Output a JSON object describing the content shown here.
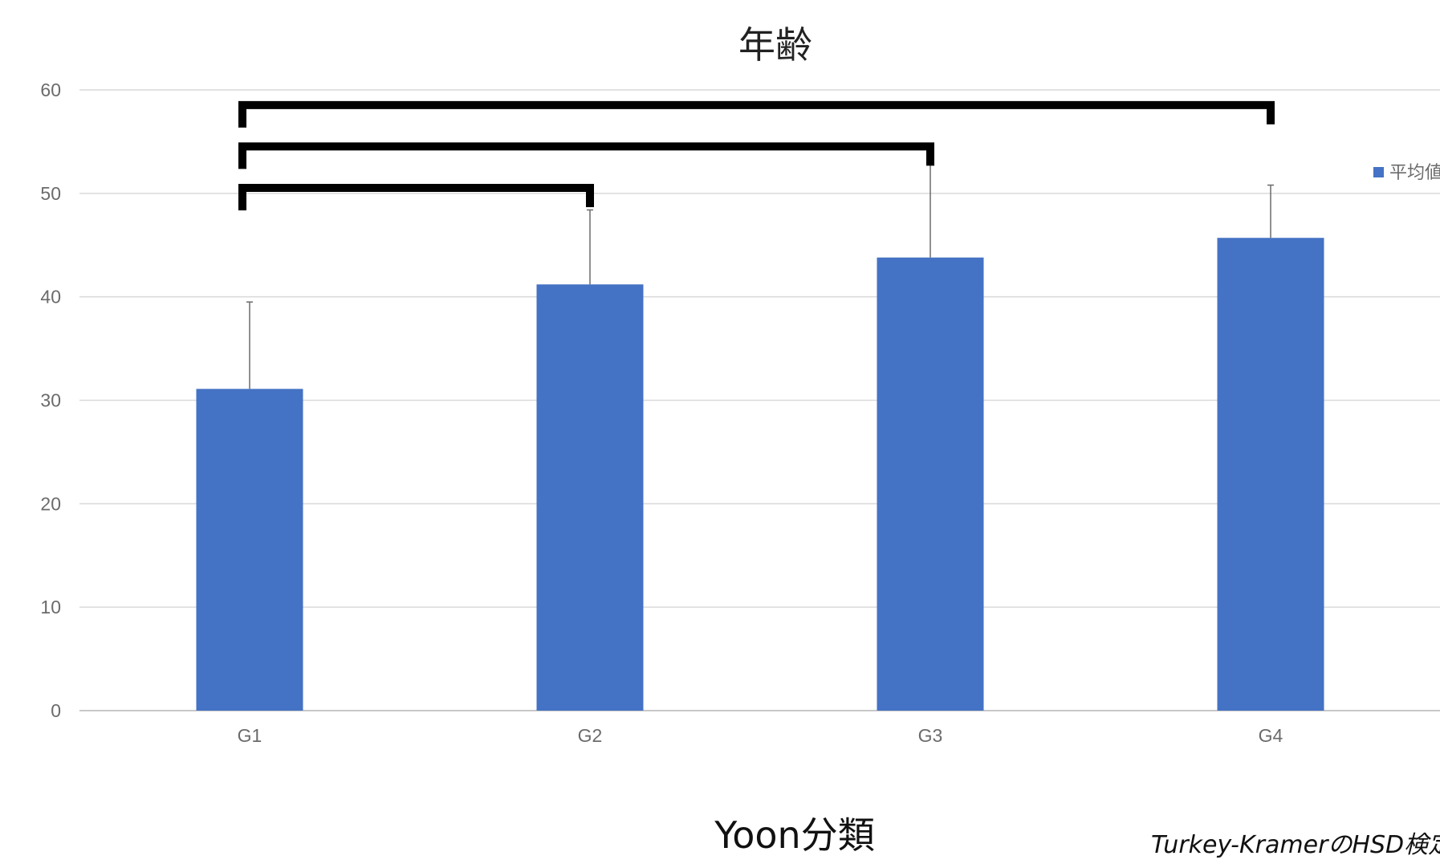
{
  "chart_data": {
    "type": "bar",
    "title": "年齢",
    "xlabel": "Yoon分類",
    "ylabel": "",
    "categories": [
      "G1",
      "G2",
      "G3",
      "G4"
    ],
    "series": [
      {
        "name": "平均値",
        "values": [
          31.1,
          41.2,
          43.8,
          45.7
        ],
        "error_plus": [
          8.4,
          7.2,
          9.4,
          5.1
        ],
        "color": "#4472C4"
      }
    ],
    "yticks": [
      "0",
      "10",
      "20",
      "30",
      "40",
      "50",
      "60"
    ],
    "ylim": [
      0,
      60
    ],
    "grid": true,
    "legend_position": "right",
    "significance_brackets": [
      {
        "from": "G1",
        "to": "G2",
        "y": 51
      },
      {
        "from": "G1",
        "to": "G3",
        "y": 55
      },
      {
        "from": "G1",
        "to": "G4",
        "y": 59
      }
    ],
    "footnote": "Turkey-KramerのHSD検定"
  },
  "colors": {
    "bar": "#4472C4",
    "grid": "#d9d9d9",
    "axis": "#c8c8c8",
    "error_bar": "#6b6b6b",
    "bracket": "#000000"
  }
}
